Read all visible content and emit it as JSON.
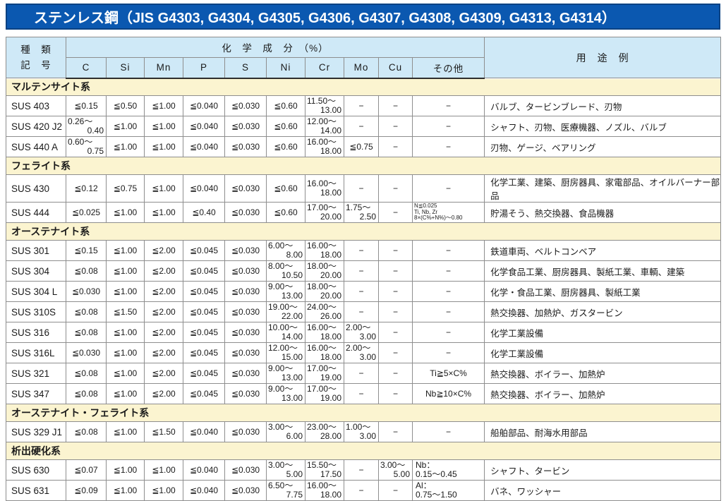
{
  "title": "ステンレス鋼（JIS G4303, G4304, G4305, G4306, G4307, G4308, G4309, G4313, G4314）",
  "colors": {
    "title_bar_bg": "#0b58b0",
    "title_bar_border": "#094283",
    "header_bg": "#cfe9f7",
    "section_bg": "#fbf4d0",
    "code_cell_bg": "#cfeaf8",
    "grid_line": "#8e8e8e"
  },
  "table": {
    "header": {
      "kind_line1": "種　類",
      "kind_line2": "記　号",
      "chem_label": "化　学　成　分　（%）",
      "elements": [
        "C",
        "Si",
        "Mn",
        "P",
        "S",
        "Ni",
        "Cr",
        "Mo",
        "Cu",
        "その他"
      ],
      "usage_label": "用　途　例"
    },
    "sections": [
      {
        "name": "マルテンサイト系",
        "rows": [
          {
            "code": "SUS 403",
            "chem": [
              "≦0.15",
              "≦0.50",
              "≦1.00",
              "≦0.040",
              "≦0.030",
              "≦0.60",
              {
                "r": [
                  "11.50～",
                  "13.00"
                ]
              },
              "−",
              "−",
              "−"
            ],
            "usage": "バルブ、タービンブレード、刃物"
          },
          {
            "code": "SUS 420 J2",
            "chem": [
              {
                "r": [
                  "0.26～",
                  "0.40"
                ]
              },
              "≦1.00",
              "≦1.00",
              "≦0.040",
              "≦0.030",
              "≦0.60",
              {
                "r": [
                  "12.00～",
                  "14.00"
                ]
              },
              "−",
              "−",
              "−"
            ],
            "usage": "シャフト、刃物、医療機器、ノズル、バルブ"
          },
          {
            "code": "SUS 440 A",
            "chem": [
              {
                "r": [
                  "0.60～",
                  "0.75"
                ]
              },
              "≦1.00",
              "≦1.00",
              "≦0.040",
              "≦0.030",
              "≦0.60",
              {
                "r": [
                  "16.00～",
                  "18.00"
                ]
              },
              "≦0.75",
              "−",
              "−"
            ],
            "usage": "刃物、ゲージ、ベアリング"
          }
        ]
      },
      {
        "name": "フェライト系",
        "rows": [
          {
            "code": "SUS 430",
            "chem": [
              "≦0.12",
              "≦0.75",
              "≦1.00",
              "≦0.040",
              "≦0.030",
              "≦0.60",
              {
                "r": [
                  "16.00～",
                  "18.00"
                ]
              },
              "−",
              "−",
              "−"
            ],
            "usage": "化学工業、建築、厨房器具、家電部品、オイルバーナー部品"
          },
          {
            "code": "SUS 444",
            "chem": [
              "≦0.025",
              "≦1.00",
              "≦1.00",
              "≦0.40",
              "≦0.030",
              "≦0.60",
              {
                "r": [
                  "17.00～",
                  "20.00"
                ]
              },
              {
                "r": [
                  "1.75～",
                  "2.50"
                ]
              },
              "−",
              {
                "lines": [
                  "N≦0.025",
                  "Ti, Nb, Zr",
                  "8×(C%+N%)～0.80"
                ],
                "small": true
              }
            ],
            "usage": "貯湯そう、熱交換器、食品機器"
          }
        ]
      },
      {
        "name": "オーステナイト系",
        "rows": [
          {
            "code": "SUS 301",
            "chem": [
              "≦0.15",
              "≦1.00",
              "≦2.00",
              "≦0.045",
              "≦0.030",
              {
                "r": [
                  "6.00～",
                  "8.00"
                ]
              },
              {
                "r": [
                  "16.00～",
                  "18.00"
                ]
              },
              "−",
              "−",
              "−"
            ],
            "usage": "鉄道車両、ベルトコンベア"
          },
          {
            "code": "SUS 304",
            "chem": [
              "≦0.08",
              "≦1.00",
              "≦2.00",
              "≦0.045",
              "≦0.030",
              {
                "r": [
                  "8.00～",
                  "10.50"
                ]
              },
              {
                "r": [
                  "18.00～",
                  "20.00"
                ]
              },
              "−",
              "−",
              "−"
            ],
            "usage": "化学食品工業、厨房器具、製紙工業、車輌、建築"
          },
          {
            "code": "SUS 304 L",
            "chem": [
              "≦0.030",
              "≦1.00",
              "≦2.00",
              "≦0.045",
              "≦0.030",
              {
                "r": [
                  "9.00～",
                  "13.00"
                ]
              },
              {
                "r": [
                  "18.00～",
                  "20.00"
                ]
              },
              "−",
              "−",
              "−"
            ],
            "usage": "化学・食品工業、厨房器具、製紙工業"
          },
          {
            "code": "SUS 310S",
            "chem": [
              "≦0.08",
              "≦1.50",
              "≦2.00",
              "≦0.045",
              "≦0.030",
              {
                "r": [
                  "19.00～",
                  "22.00"
                ]
              },
              {
                "r": [
                  "24.00～",
                  "26.00"
                ]
              },
              "−",
              "−",
              "−"
            ],
            "usage": "熱交換器、加熱炉、ガスタービン"
          },
          {
            "code": "SUS 316",
            "chem": [
              "≦0.08",
              "≦1.00",
              "≦2.00",
              "≦0.045",
              "≦0.030",
              {
                "r": [
                  "10.00～",
                  "14.00"
                ]
              },
              {
                "r": [
                  "16.00～",
                  "18.00"
                ]
              },
              {
                "r": [
                  "2.00～",
                  "3.00"
                ]
              },
              "−",
              "−"
            ],
            "usage": "化学工業設備"
          },
          {
            "code": "SUS 316L",
            "chem": [
              "≦0.030",
              "≦1.00",
              "≦2.00",
              "≦0.045",
              "≦0.030",
              {
                "r": [
                  "12.00～",
                  "15.00"
                ]
              },
              {
                "r": [
                  "16.00～",
                  "18.00"
                ]
              },
              {
                "r": [
                  "2.00～",
                  "3.00"
                ]
              },
              "−",
              "−"
            ],
            "usage": "化学工業設備"
          },
          {
            "code": "SUS 321",
            "chem": [
              "≦0.08",
              "≦1.00",
              "≦2.00",
              "≦0.045",
              "≦0.030",
              {
                "r": [
                  "9.00～",
                  "13.00"
                ]
              },
              {
                "r": [
                  "17.00～",
                  "19.00"
                ]
              },
              "−",
              "−",
              "Ti≧5×C%"
            ],
            "usage": "熱交換器、ボイラー、加熱炉"
          },
          {
            "code": "SUS 347",
            "chem": [
              "≦0.08",
              "≦1.00",
              "≦2.00",
              "≦0.045",
              "≦0.030",
              {
                "r": [
                  "9.00～",
                  "13.00"
                ]
              },
              {
                "r": [
                  "17.00～",
                  "19.00"
                ]
              },
              "−",
              "−",
              "Nb≧10×C%"
            ],
            "usage": "熱交換器、ボイラー、加熱炉"
          }
        ]
      },
      {
        "name": "オーステナイト・フェライト系",
        "rows": [
          {
            "code": "SUS 329 J1",
            "chem": [
              "≦0.08",
              "≦1.00",
              "≦1.50",
              "≦0.040",
              "≦0.030",
              {
                "r": [
                  "3.00～",
                  "6.00"
                ]
              },
              {
                "r": [
                  "23.00～",
                  "28.00"
                ]
              },
              {
                "r": [
                  "1.00～",
                  "3.00"
                ]
              },
              "−",
              "−"
            ],
            "usage": "船舶部品、耐海水用部品"
          }
        ]
      },
      {
        "name": "析出硬化系",
        "rows": [
          {
            "code": "SUS 630",
            "chem": [
              "≦0.07",
              "≦1.00",
              "≦1.00",
              "≦0.040",
              "≦0.030",
              {
                "r": [
                  "3.00～",
                  "5.00"
                ]
              },
              {
                "r": [
                  "15.50～",
                  "17.50"
                ]
              },
              "−",
              {
                "r": [
                  "3.00～",
                  "5.00"
                ]
              },
              {
                "lines": [
                  "Nb：",
                  "0.15～0.45"
                ]
              }
            ],
            "usage": "シャフト、タービン"
          },
          {
            "code": "SUS 631",
            "chem": [
              "≦0.09",
              "≦1.00",
              "≦1.00",
              "≦0.040",
              "≦0.030",
              {
                "r": [
                  "6.50～",
                  "7.75"
                ]
              },
              {
                "r": [
                  "16.00～",
                  "18.00"
                ]
              },
              "−",
              "−",
              {
                "lines": [
                  "Al：",
                  "0.75～1.50"
                ]
              }
            ],
            "usage": "バネ、ワッシャー"
          }
        ]
      }
    ]
  }
}
